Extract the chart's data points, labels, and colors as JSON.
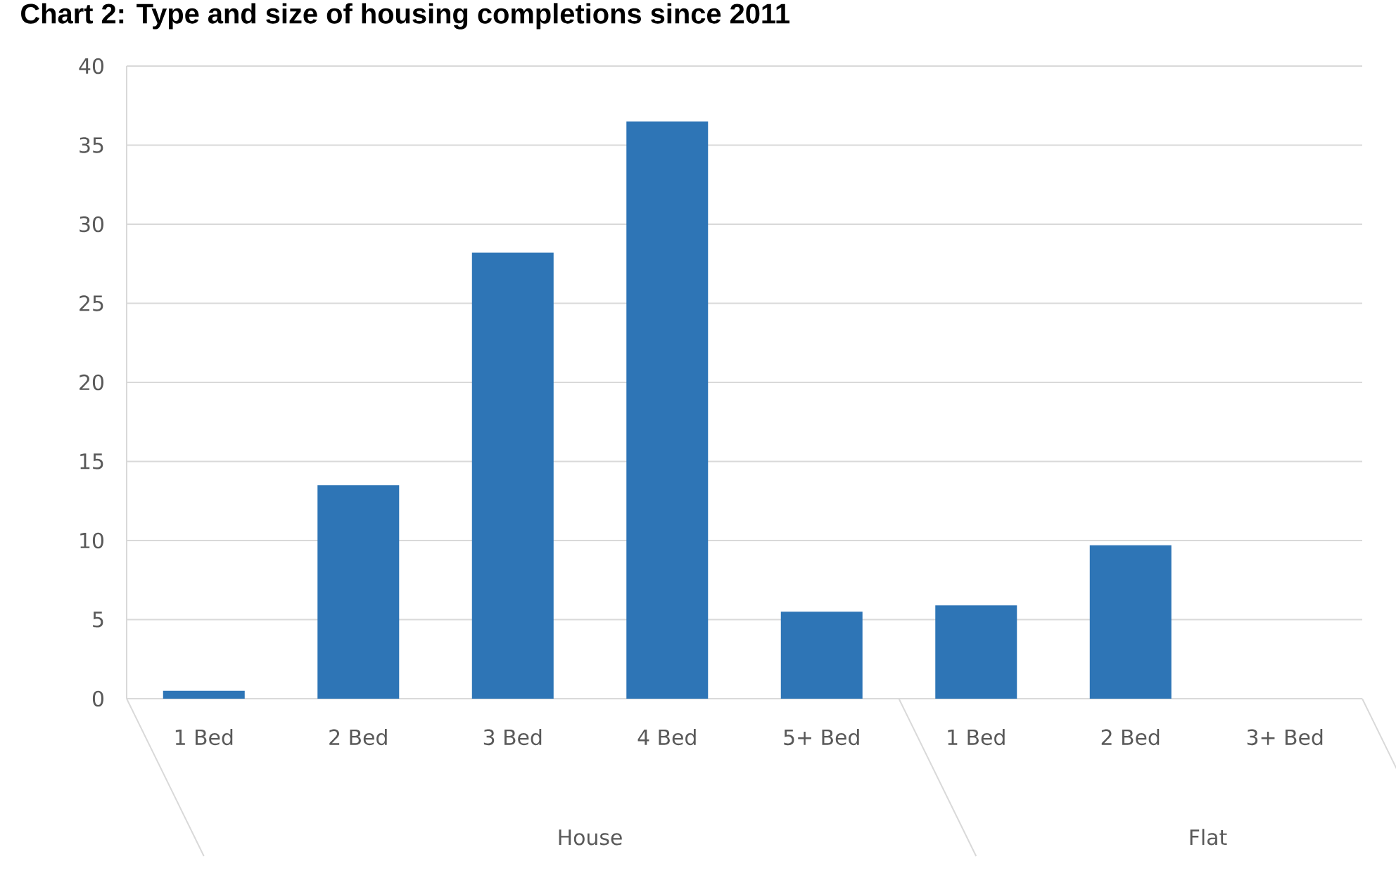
{
  "chart_data": {
    "type": "bar",
    "title": "Chart 2: Type and size of housing completions since 2011",
    "categories": [
      "1 Bed",
      "2 Bed",
      "3 Bed",
      "4 Bed",
      "5+ Bed",
      "1 Bed",
      "2 Bed",
      "3+ Bed"
    ],
    "values": [
      0.5,
      13.5,
      28.2,
      36.5,
      5.5,
      5.9,
      9.7,
      0
    ],
    "color": "#2e75b6",
    "ylim": [
      0,
      40
    ],
    "yticks": [
      0,
      5,
      10,
      15,
      20,
      25,
      30,
      35,
      40
    ],
    "grid": "y",
    "annotations": [
      "House",
      "Flat"
    ]
  }
}
